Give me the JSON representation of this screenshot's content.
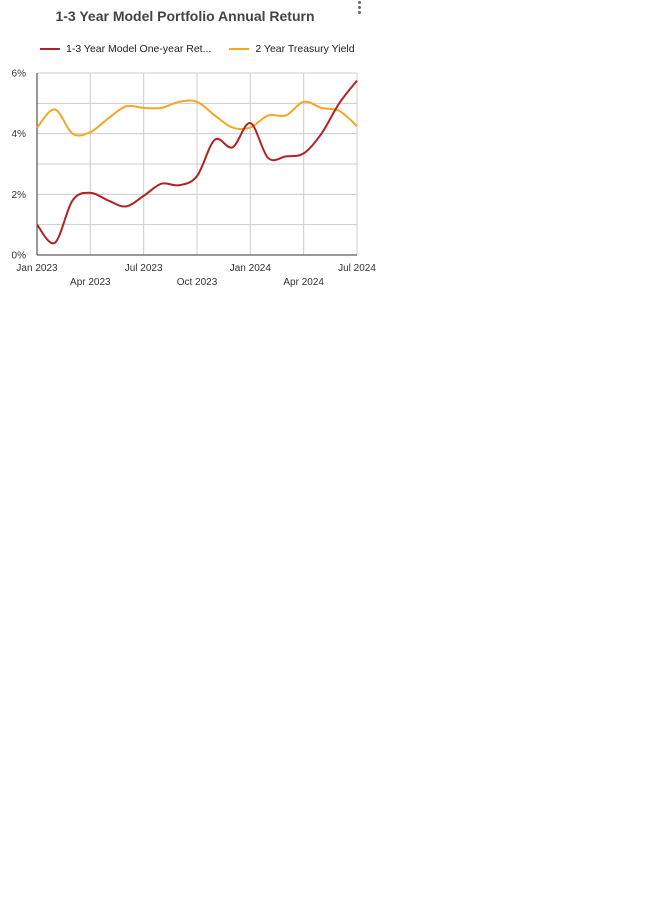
{
  "title": "1-3 Year Model Portfolio Annual Return",
  "legend": {
    "series1": "1-3 Year Model One-year Ret...",
    "series2": "2 Year Treasury Yield"
  },
  "chart_data": {
    "type": "line",
    "title": "1-3 Year Model Portfolio Annual Return",
    "xlabel": "",
    "ylabel": "",
    "ylim": [
      0,
      6
    ],
    "y_ticks": [
      "0%",
      "2%",
      "4%",
      "6%"
    ],
    "x_tick_labels_row1": [
      "Jan 2023",
      "Jul 2023",
      "Jan 2024",
      "Jul 2024"
    ],
    "x_tick_labels_row2": [
      "Apr 2023",
      "Oct 2023",
      "Apr 2024"
    ],
    "x_domain": [
      "2023-01",
      "2024-07"
    ],
    "grid": true,
    "legend_position": "top",
    "series": [
      {
        "name": "1-3 Year Model One-year Ret...",
        "color": "#b22222",
        "x": [
          "2023-01",
          "2023-02",
          "2023-03",
          "2023-04",
          "2023-05",
          "2023-06",
          "2023-07",
          "2023-08",
          "2023-09",
          "2023-10",
          "2023-11",
          "2023-12",
          "2024-01",
          "2024-02",
          "2024-03",
          "2024-04",
          "2024-05",
          "2024-06",
          "2024-07"
        ],
        "values": [
          1.0,
          0.4,
          1.8,
          2.05,
          1.8,
          1.6,
          1.95,
          2.35,
          2.3,
          2.6,
          3.8,
          3.55,
          4.35,
          3.2,
          3.25,
          3.35,
          4.0,
          5.0,
          5.75
        ]
      },
      {
        "name": "2 Year Treasury Yield",
        "color": "#f5a623",
        "x": [
          "2023-01",
          "2023-02",
          "2023-03",
          "2023-04",
          "2023-05",
          "2023-06",
          "2023-07",
          "2023-08",
          "2023-09",
          "2023-10",
          "2023-11",
          "2023-12",
          "2024-01",
          "2024-02",
          "2024-03",
          "2024-04",
          "2024-05",
          "2024-06",
          "2024-07"
        ],
        "values": [
          4.2,
          4.8,
          4.0,
          4.05,
          4.5,
          4.9,
          4.85,
          4.85,
          5.05,
          5.05,
          4.6,
          4.2,
          4.2,
          4.6,
          4.6,
          5.05,
          4.85,
          4.75,
          4.25
        ]
      }
    ]
  }
}
